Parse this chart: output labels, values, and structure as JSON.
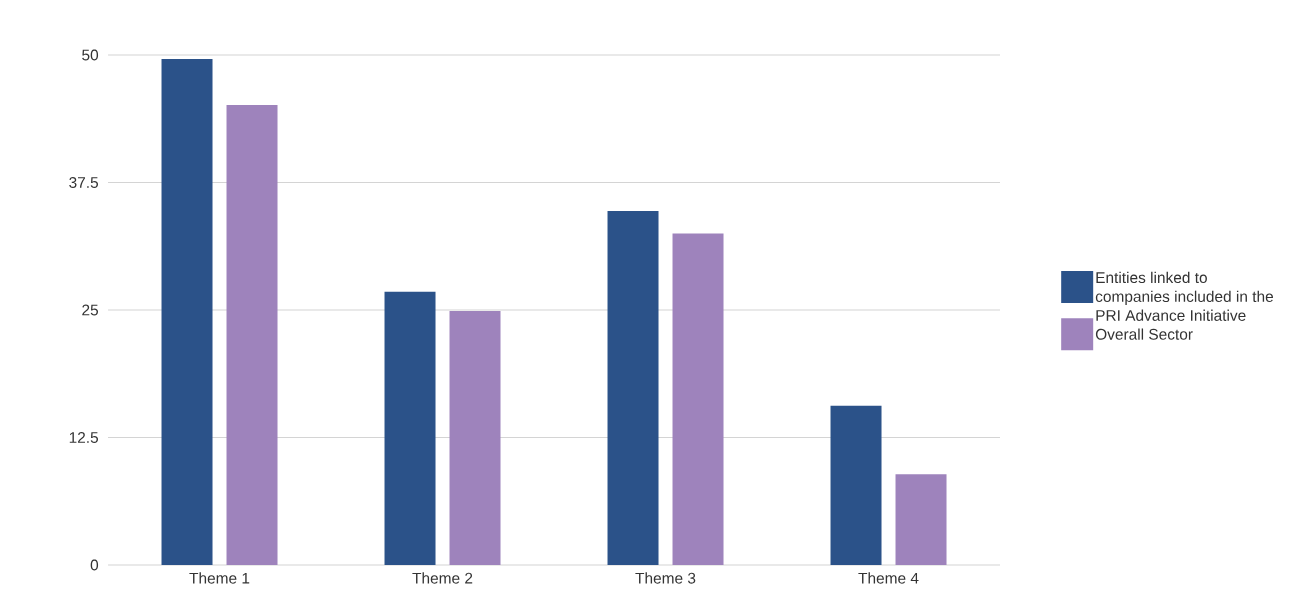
{
  "chart_data": {
    "type": "bar",
    "categories": [
      "Theme 1",
      "Theme 2",
      "Theme 3",
      "Theme 4"
    ],
    "series": [
      {
        "name": "Entities linked to companies included in the PRI Advance Initiative",
        "color": "#2b5289",
        "values": [
          49.6,
          26.8,
          34.7,
          15.6
        ]
      },
      {
        "name": "Overall Sector",
        "color": "#9e83bc",
        "values": [
          45.1,
          24.9,
          32.5,
          8.9
        ]
      }
    ],
    "ylim": [
      0,
      50
    ],
    "yticks": [
      0,
      12.5,
      25,
      37.5,
      50
    ],
    "grid": "y",
    "legend": "right"
  }
}
